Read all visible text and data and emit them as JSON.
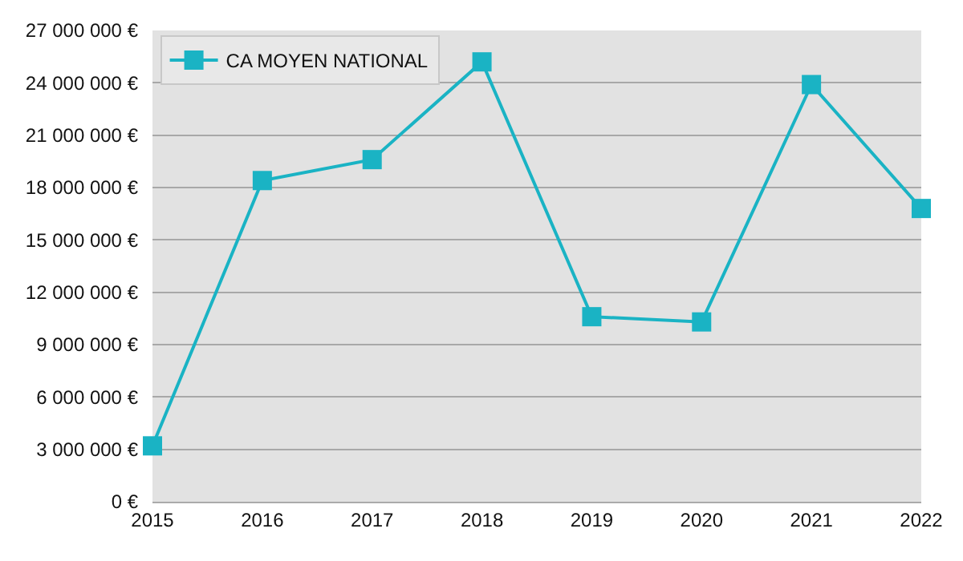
{
  "chart_data": {
    "type": "line",
    "x": [
      2015,
      2016,
      2017,
      2018,
      2019,
      2020,
      2021,
      2022
    ],
    "series": [
      {
        "name": "CA MOYEN NATIONAL",
        "color": "#1ab3c4",
        "values": [
          3200000,
          18400000,
          19600000,
          25200000,
          10600000,
          10300000,
          23900000,
          16800000
        ]
      }
    ],
    "xlim": [
      2015,
      2022
    ],
    "xticks": [
      2015,
      2016,
      2017,
      2018,
      2019,
      2020,
      2021,
      2022
    ],
    "ylim": [
      0,
      27000000
    ],
    "yticks": [
      {
        "value": 0,
        "label": "0 €"
      },
      {
        "value": 3000000,
        "label": "3 000 000 €"
      },
      {
        "value": 6000000,
        "label": "6 000 000 €"
      },
      {
        "value": 9000000,
        "label": "9 000 000 €"
      },
      {
        "value": 12000000,
        "label": "12 000 000 €"
      },
      {
        "value": 15000000,
        "label": "15 000 000 €"
      },
      {
        "value": 18000000,
        "label": "18 000 000 €"
      },
      {
        "value": 21000000,
        "label": "21 000 000 €"
      },
      {
        "value": 24000000,
        "label": "24 000 000 €"
      },
      {
        "value": 27000000,
        "label": "27 000 000 €"
      }
    ],
    "grid": "y",
    "legend": "top left",
    "marker": "square",
    "line_style": "solid"
  }
}
